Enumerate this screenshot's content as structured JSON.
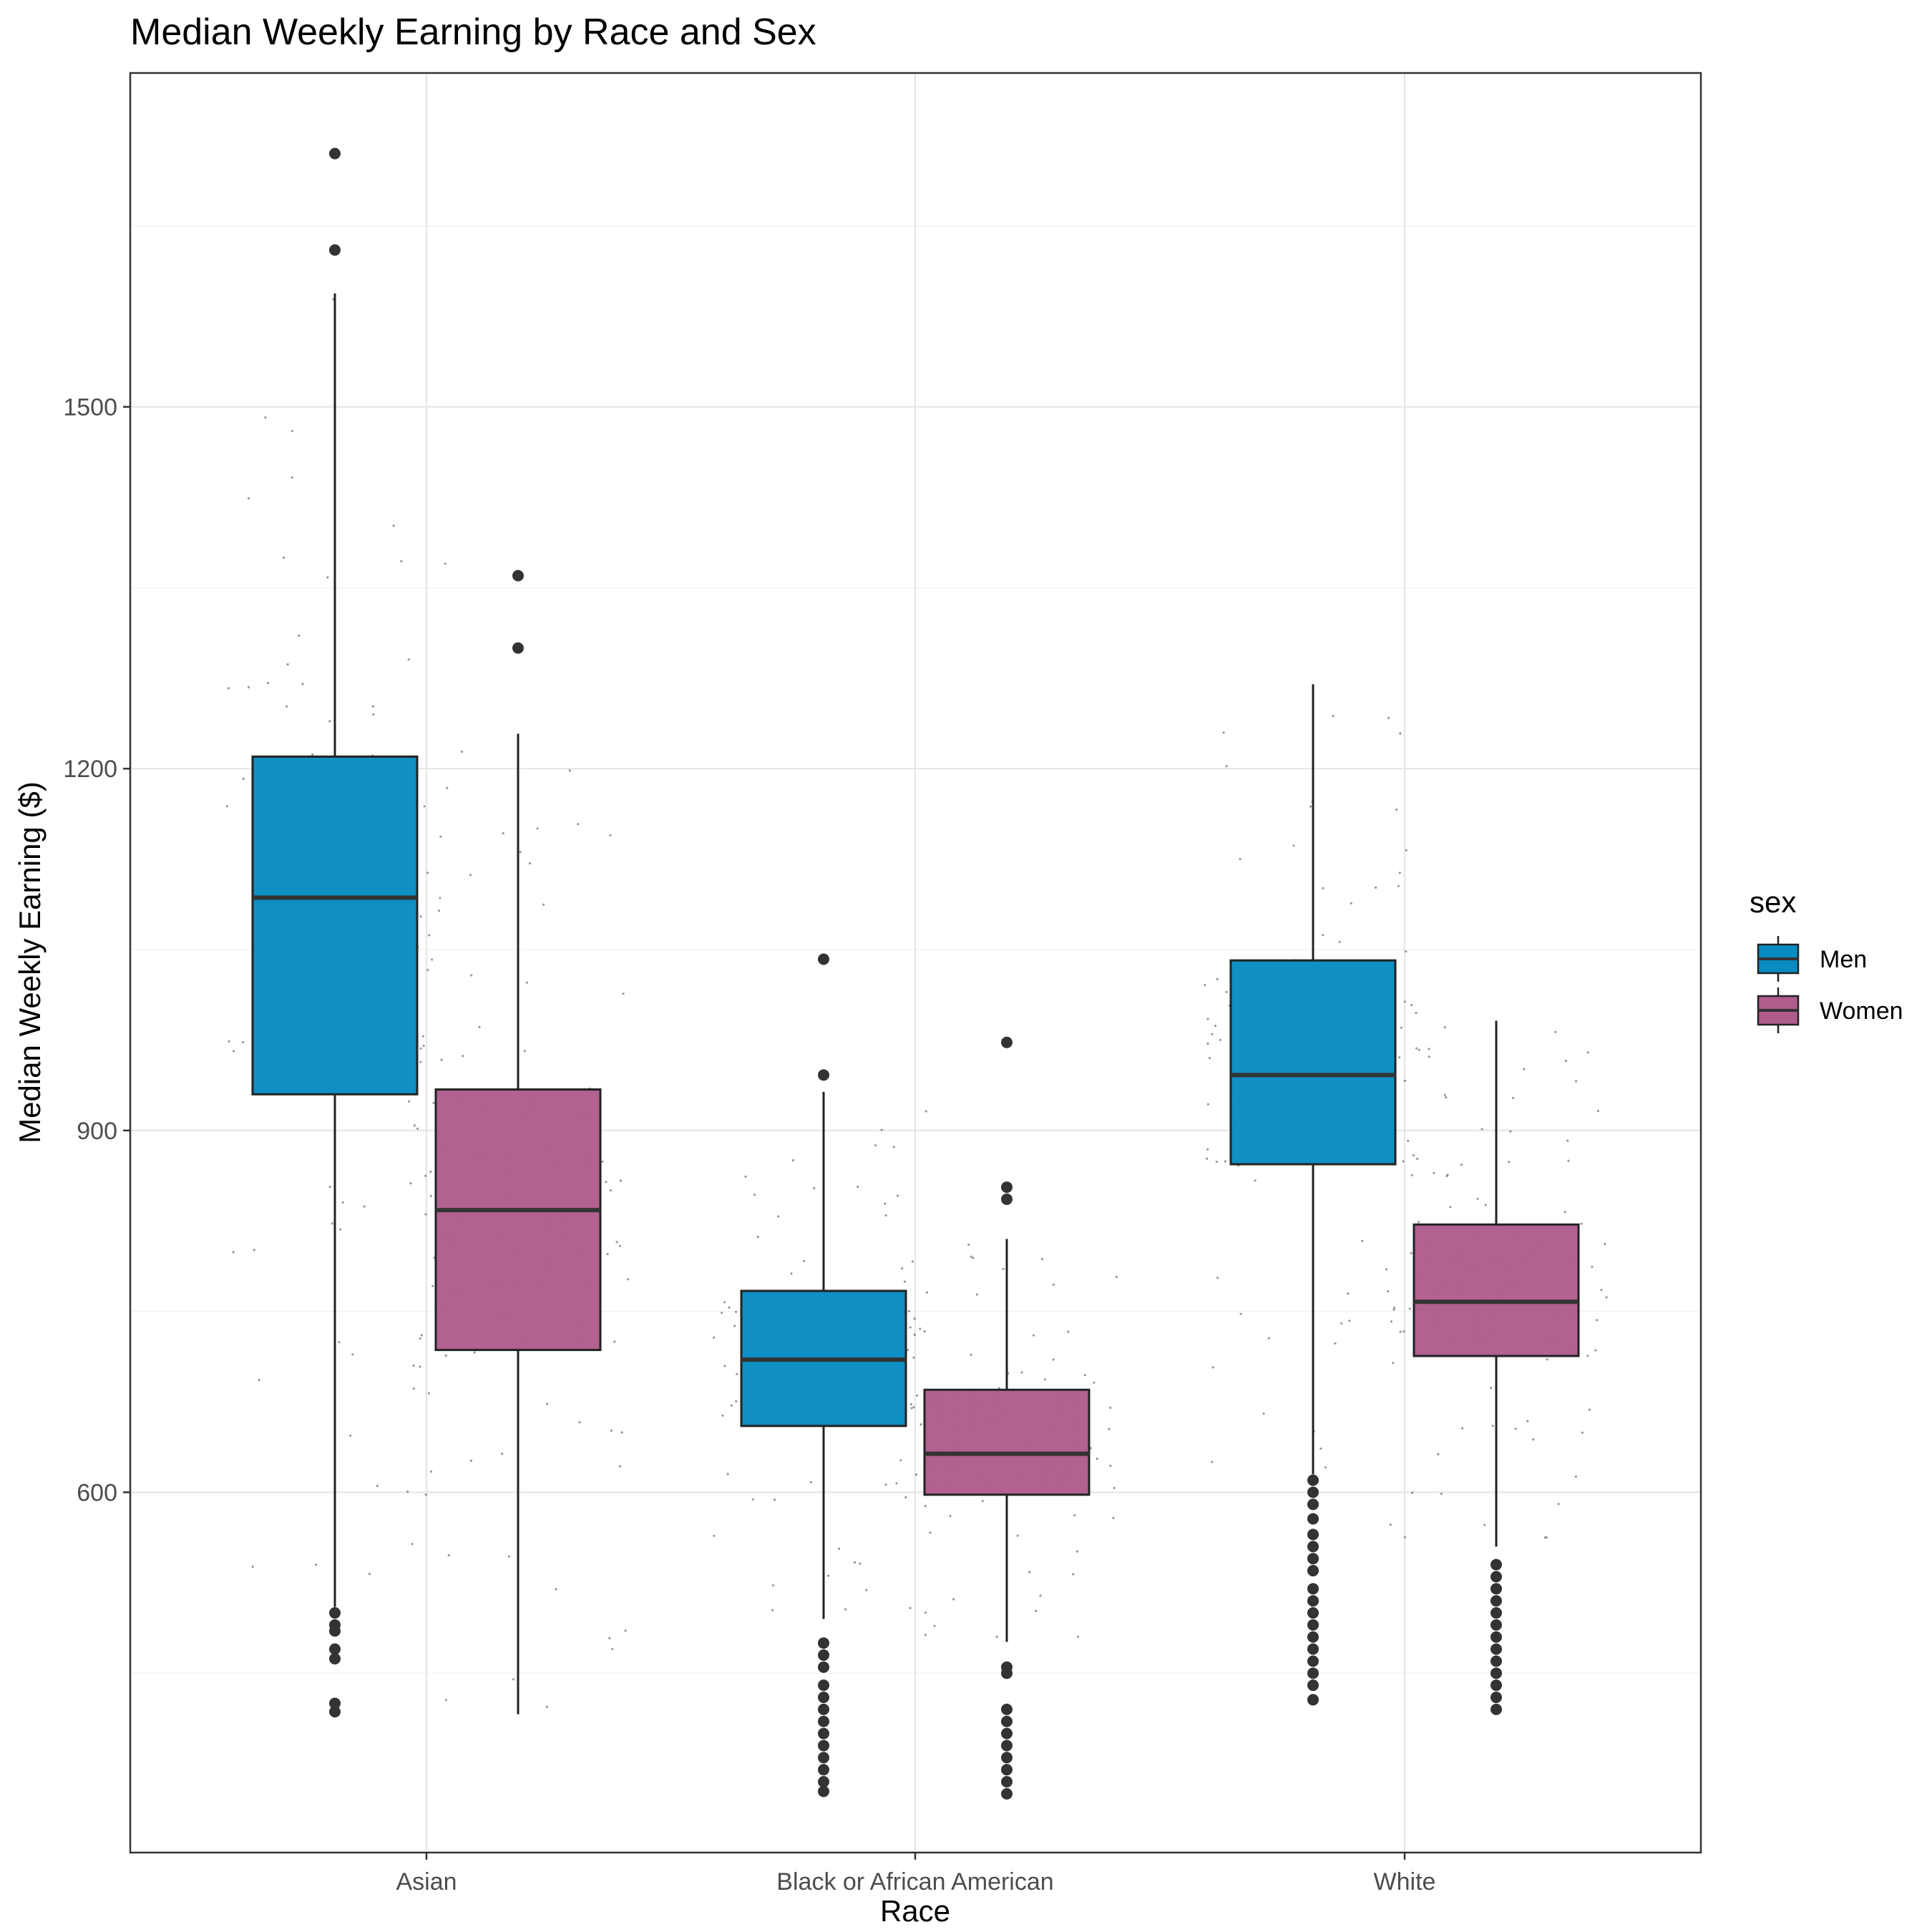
{
  "chart_data": {
    "type": "box",
    "title": "Median Weekly Earning by Race and Sex",
    "xlabel": "Race",
    "ylabel": "Median Weekly Earning ($)",
    "categories": [
      "Asian",
      "Black or African American",
      "White"
    ],
    "y_ticks": [
      600,
      900,
      1200,
      1500
    ],
    "ylim": [
      300,
      1775
    ],
    "grid": true,
    "legend": {
      "title": "sex",
      "position": "right",
      "entries": [
        {
          "name": "Men",
          "color": "#078BC1"
        },
        {
          "name": "Women",
          "color": "#B05C8C"
        }
      ]
    },
    "series": [
      {
        "name": "Men",
        "color": "#078BC1",
        "boxes": [
          {
            "category": "Asian",
            "whisker_low": 505,
            "q1": 930,
            "median": 1093,
            "q3": 1210,
            "whisker_high": 1594,
            "outliers": [
              1710,
              1630,
              500,
              490,
              485,
              470,
              462,
              425,
              418
            ]
          },
          {
            "category": "Black or African American",
            "whisker_low": 495,
            "q1": 655,
            "median": 710,
            "q3": 767,
            "whisker_high": 932,
            "outliers": [
              1042,
              946,
              475,
              465,
              455,
              440,
              430,
              420,
              410,
              400,
              390,
              380,
              370,
              360,
              352
            ]
          },
          {
            "category": "White",
            "whisker_low": 615,
            "q1": 872,
            "median": 946,
            "q3": 1041,
            "whisker_high": 1270,
            "outliers": [
              610,
              600,
              590,
              578,
              565,
              555,
              545,
              535,
              520,
              510,
              500,
              490,
              480,
              470,
              460,
              450,
              440,
              428
            ]
          }
        ]
      },
      {
        "name": "Women",
        "color": "#B05C8C",
        "boxes": [
          {
            "category": "Asian",
            "whisker_low": 416,
            "q1": 718,
            "median": 834,
            "q3": 934,
            "whisker_high": 1229,
            "outliers": [
              1360,
              1300
            ]
          },
          {
            "category": "Black or African American",
            "whisker_low": 476,
            "q1": 598,
            "median": 632,
            "q3": 685,
            "whisker_high": 810,
            "outliers": [
              973,
              853,
              843,
              455,
              450,
              420,
              410,
              400,
              390,
              380,
              370,
              360,
              350
            ]
          },
          {
            "category": "White",
            "whisker_low": 555,
            "q1": 713,
            "median": 758,
            "q3": 822,
            "whisker_high": 991,
            "outliers": [
              540,
              530,
              520,
              510,
              500,
              490,
              480,
              470,
              460,
              450,
              440,
              430,
              420
            ]
          }
        ]
      }
    ]
  }
}
